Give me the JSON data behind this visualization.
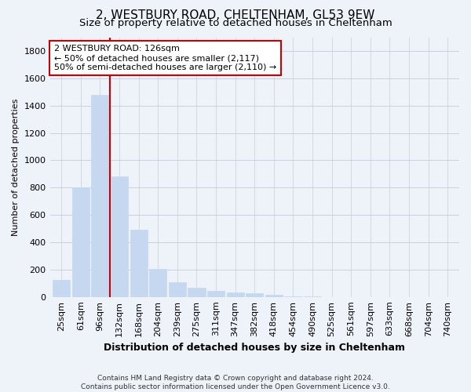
{
  "title": "2, WESTBURY ROAD, CHELTENHAM, GL53 9EW",
  "subtitle": "Size of property relative to detached houses in Cheltenham",
  "xlabel": "Distribution of detached houses by size in Cheltenham",
  "ylabel": "Number of detached properties",
  "categories": [
    "25sqm",
    "61sqm",
    "96sqm",
    "132sqm",
    "168sqm",
    "204sqm",
    "239sqm",
    "275sqm",
    "311sqm",
    "347sqm",
    "382sqm",
    "418sqm",
    "454sqm",
    "490sqm",
    "525sqm",
    "561sqm",
    "597sqm",
    "633sqm",
    "668sqm",
    "704sqm",
    "740sqm"
  ],
  "values": [
    125,
    800,
    1480,
    880,
    490,
    205,
    105,
    65,
    45,
    35,
    28,
    15,
    5,
    2,
    1,
    0,
    0,
    0,
    0,
    0,
    0
  ],
  "bar_color": "#c5d8f0",
  "bar_edge_color": "#c5d8f0",
  "vline_color": "#cc0000",
  "annotation_line1": "2 WESTBURY ROAD: 126sqm",
  "annotation_line2": "← 50% of detached houses are smaller (2,117)",
  "annotation_line3": "50% of semi-detached houses are larger (2,110) →",
  "annotation_box_color": "#ffffff",
  "annotation_box_edgecolor": "#cc0000",
  "footnote1": "Contains HM Land Registry data © Crown copyright and database right 2024.",
  "footnote2": "Contains public sector information licensed under the Open Government Licence v3.0.",
  "ylim": [
    0,
    1900
  ],
  "yticks": [
    0,
    200,
    400,
    600,
    800,
    1000,
    1200,
    1400,
    1600,
    1800
  ],
  "bg_color": "#eef2f9",
  "grid_color": "#c8cfe0",
  "title_fontsize": 11,
  "subtitle_fontsize": 9.5,
  "xlabel_fontsize": 9,
  "ylabel_fontsize": 8,
  "tick_fontsize": 8,
  "footnote_fontsize": 6.5,
  "bar_width": 0.9,
  "vline_x": 2.5
}
